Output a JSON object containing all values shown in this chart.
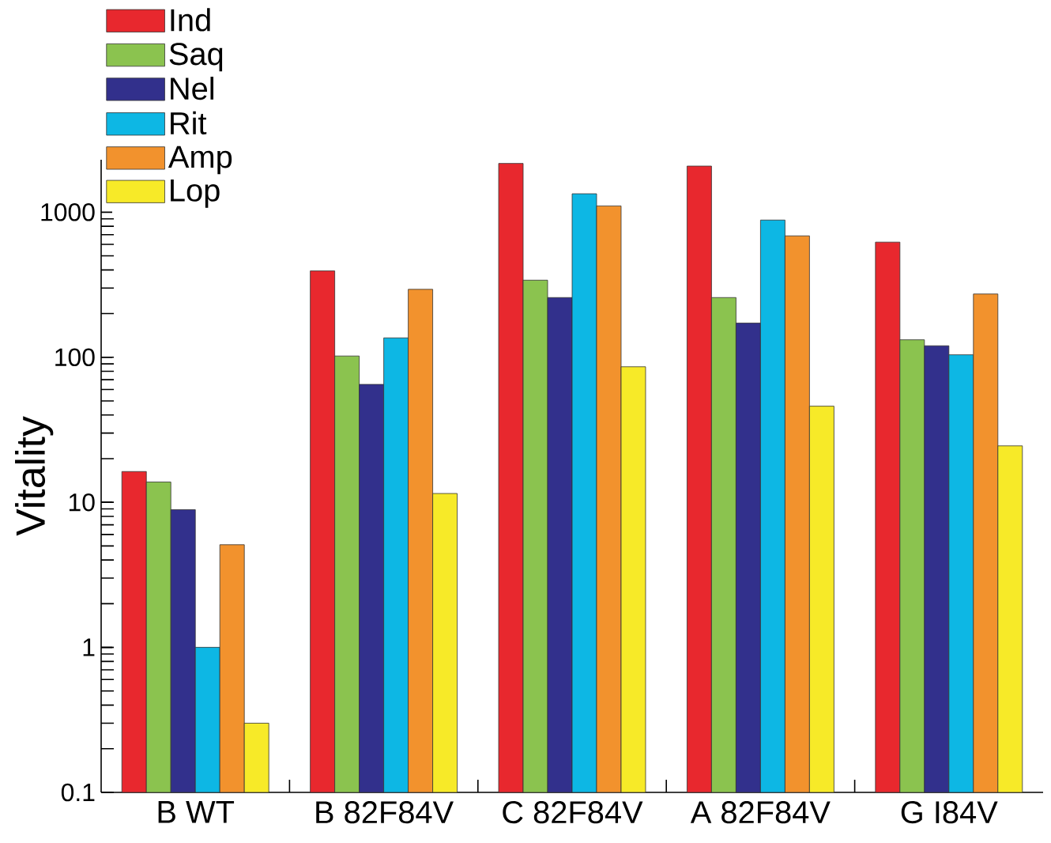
{
  "chart_data": {
    "type": "bar",
    "ylabel": "Vitality",
    "categories": [
      "B WT",
      "B 82F84V",
      "C 82F84V",
      "A 82F84V",
      "G I84V"
    ],
    "series": [
      {
        "name": "Ind",
        "color": "#e8282e",
        "values": [
          16.3,
          394,
          2170,
          2080,
          622
        ]
      },
      {
        "name": "Saq",
        "color": "#8bc34f",
        "values": [
          13.8,
          102,
          340,
          258,
          132
        ]
      },
      {
        "name": "Nel",
        "color": "#32308c",
        "values": [
          8.9,
          65,
          258,
          172,
          120
        ]
      },
      {
        "name": "Rit",
        "color": "#0db7e4",
        "values": [
          1.0,
          136,
          1340,
          883,
          104
        ]
      },
      {
        "name": "Amp",
        "color": "#f2922d",
        "values": [
          5.1,
          294,
          1105,
          687,
          273
        ]
      },
      {
        "name": "Lop",
        "color": "#f7ea28",
        "values": [
          0.3,
          11.5,
          86,
          46,
          24.5
        ]
      }
    ],
    "log": "y",
    "ylim": [
      0.1,
      2300
    ],
    "yticks": [
      0.1,
      1,
      10,
      100,
      1000
    ],
    "legend": "top left",
    "grid": false
  }
}
